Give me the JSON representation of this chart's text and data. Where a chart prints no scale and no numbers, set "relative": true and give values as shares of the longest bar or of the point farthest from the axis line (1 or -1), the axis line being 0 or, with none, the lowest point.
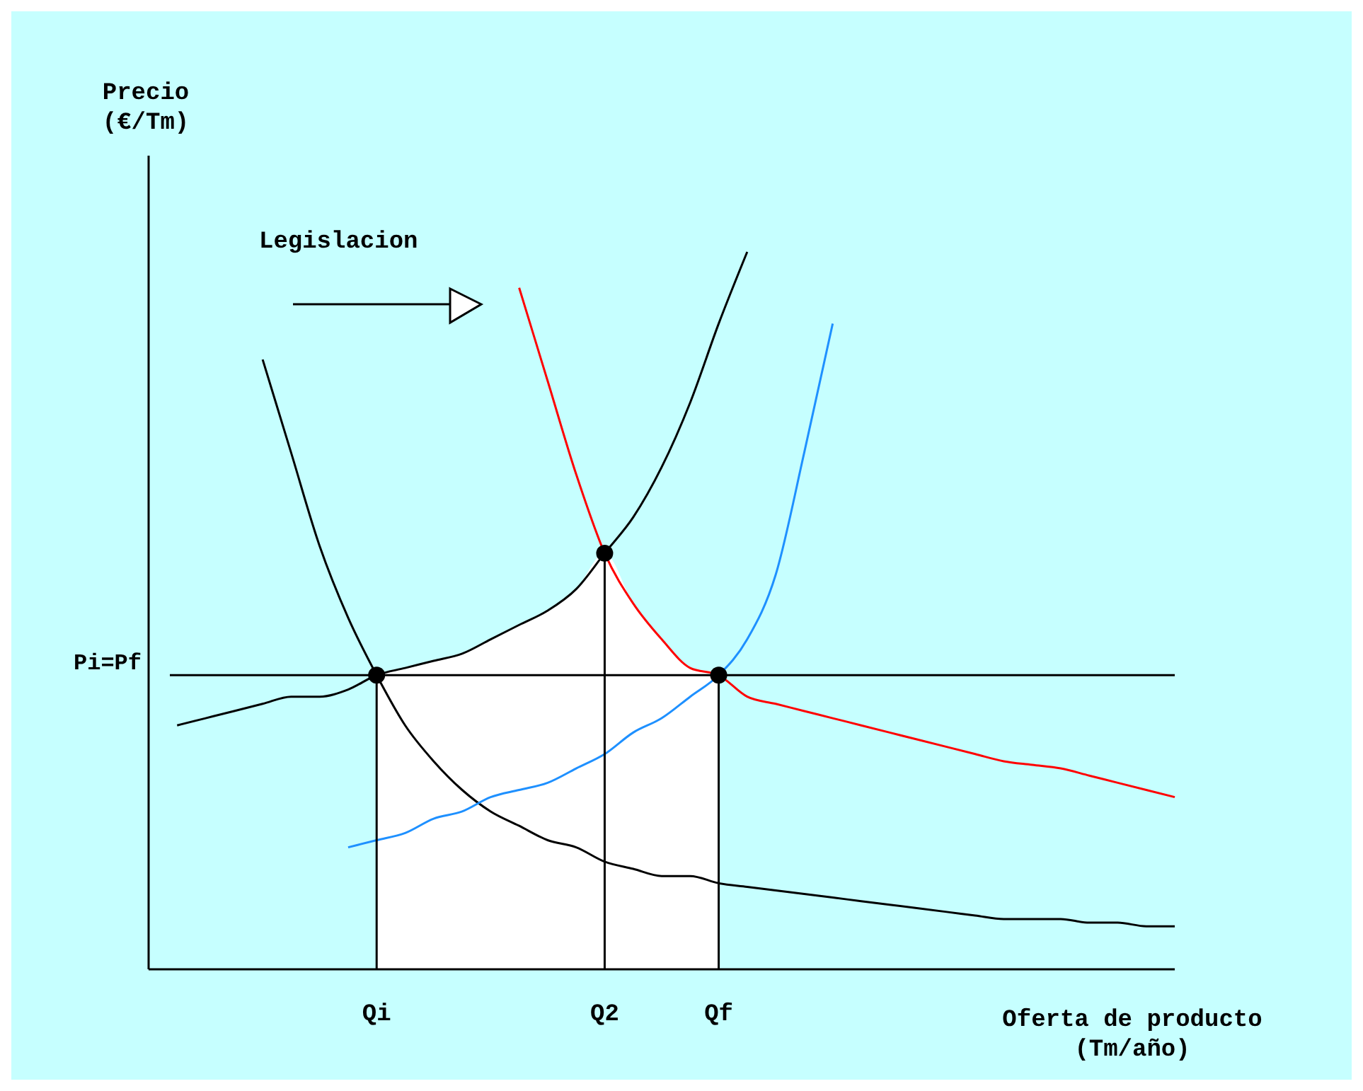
{
  "chart_data": {
    "type": "line",
    "relative": true,
    "ylabel": "Precio\n(€/Tm)",
    "xlabel": "Oferta de producto\n(Tm/año)",
    "categories": [
      null,
      null,
      null,
      null,
      null,
      null,
      null,
      null,
      "Qi",
      null,
      null,
      null,
      null,
      null,
      null,
      null,
      "Q2",
      null,
      null,
      null,
      "Qf",
      null,
      null,
      null,
      null,
      null,
      null,
      null,
      null,
      null,
      null,
      null,
      null,
      null,
      null,
      null,
      null
    ],
    "series": [
      {
        "type": "area",
        "color": "#ffffff",
        "values": [
          null,
          null,
          null,
          null,
          null,
          null,
          null,
          null,
          0.41,
          0.42,
          0.43,
          0.44,
          0.46,
          0.48,
          0.5,
          0.53,
          0.58,
          0.51,
          0.46,
          0.42,
          0.41,
          null,
          null,
          null,
          null,
          null,
          null,
          null,
          null,
          null,
          null,
          null,
          null,
          null,
          null,
          null,
          null
        ]
      },
      {
        "type": "line",
        "color": "#000000",
        "values": [
          null,
          null,
          null,
          null,
          0.85,
          0.72,
          0.59,
          0.49,
          0.41,
          0.34,
          0.29,
          0.25,
          0.22,
          0.2,
          0.18,
          0.17,
          0.15,
          0.14,
          0.13,
          0.13,
          0.12,
          0.115,
          0.11,
          0.105,
          0.1,
          0.095,
          0.09,
          0.085,
          0.08,
          0.075,
          0.07,
          0.07,
          0.07,
          0.065,
          0.065,
          0.06,
          0.06
        ]
      },
      {
        "type": "line",
        "color": "#000000",
        "values": [
          null,
          0.34,
          0.35,
          0.36,
          0.37,
          0.38,
          0.38,
          0.39,
          0.41,
          0.42,
          0.43,
          0.44,
          0.46,
          0.48,
          0.5,
          0.53,
          0.58,
          0.63,
          0.7,
          0.79,
          0.9,
          1.0,
          null,
          null,
          null,
          null,
          null,
          null,
          null,
          null,
          null,
          null,
          null,
          null,
          null,
          null,
          null
        ]
      },
      {
        "color": "#ff0000",
        "values": [
          null,
          null,
          null,
          null,
          null,
          null,
          null,
          null,
          null,
          null,
          null,
          null,
          null,
          0.95,
          0.82,
          0.69,
          0.58,
          0.51,
          0.46,
          0.42,
          0.41,
          0.38,
          0.37,
          0.36,
          0.35,
          0.34,
          0.33,
          0.32,
          0.31,
          0.3,
          0.29,
          0.285,
          0.28,
          0.27,
          0.26,
          0.25,
          0.24
        ]
      },
      {
        "type": "line",
        "color": "#1e90ff",
        "values": [
          null,
          null,
          null,
          null,
          null,
          null,
          null,
          0.17,
          0.18,
          0.19,
          0.21,
          0.22,
          0.24,
          0.25,
          0.26,
          0.28,
          0.3,
          0.33,
          0.35,
          0.38,
          0.41,
          0.46,
          0.55,
          0.72,
          0.9,
          null,
          null,
          null,
          null,
          null,
          null,
          null,
          null,
          null,
          null,
          null,
          null
        ]
      },
      {
        "type": "scatter",
        "color": "#000000",
        "marker": "circle",
        "x": [
          "Qi",
          "Q2",
          "Qf"
        ],
        "values": [
          0.41,
          0.58,
          0.41
        ]
      }
    ],
    "ref_lines": [
      {
        "axis": "y",
        "value": 0.41,
        "label": "Pi=Pf",
        "color": "#000000"
      }
    ],
    "annotations": [
      "Legislacion"
    ]
  }
}
